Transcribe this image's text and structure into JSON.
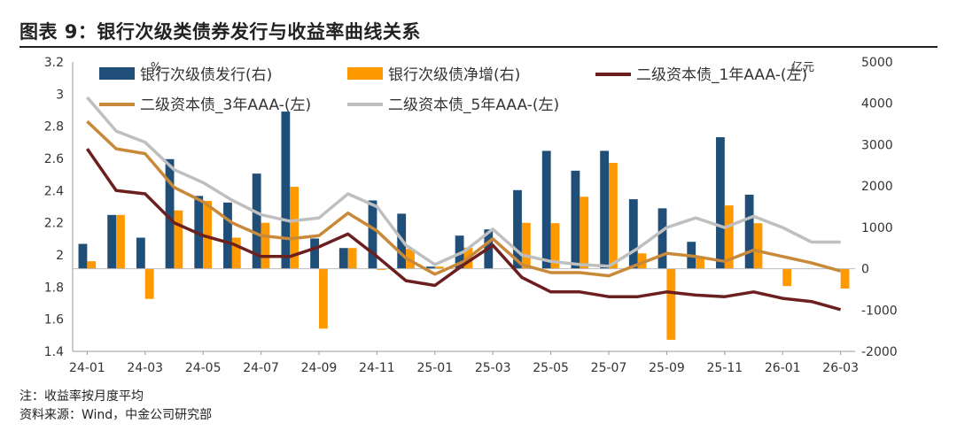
{
  "figure": {
    "title": "图表 9：银行次级类债券发行与收益率曲线关系",
    "note": "注：收益率按月度平均",
    "source": "资料来源：Wind，中金公司研究部"
  },
  "chart_data": {
    "type": "bar",
    "x": [
      "24-01",
      "24-02",
      "24-03",
      "24-04",
      "24-05",
      "24-06",
      "24-07",
      "24-08",
      "24-09",
      "24-10",
      "24-11",
      "24-12",
      "25-01",
      "25-02",
      "25-03",
      "25-04",
      "25-05",
      "25-06",
      "25-07",
      "25-08",
      "25-09",
      "25-10",
      "25-11",
      "25-12",
      "26-01",
      "26-02",
      "26-03"
    ],
    "x_tick_labels": [
      "24-01",
      "24-03",
      "24-05",
      "24-07",
      "24-09",
      "24-11",
      "25-01",
      "25-03",
      "25-05",
      "25-07",
      "25-09",
      "25-11",
      "26-01",
      "26-03"
    ],
    "left_axis": {
      "unit": "%",
      "min": 1.4,
      "max": 3.2,
      "ticks": [
        "1.4",
        "1.6",
        "1.8",
        "2",
        "2.2",
        "2.4",
        "2.6",
        "2.8",
        "3",
        "3.2"
      ]
    },
    "right_axis": {
      "unit": "亿元",
      "min": -2000,
      "max": 5000,
      "ticks": [
        "-2000",
        "-1000",
        "0",
        "1000",
        "2000",
        "3000",
        "4000",
        "5000"
      ]
    },
    "bar_series": [
      {
        "name": "银行次级债发行(右)",
        "color": "#1f4e79",
        "values": [
          600,
          1300,
          750,
          2650,
          1760,
          1600,
          2300,
          3800,
          730,
          500,
          1650,
          1330,
          50,
          800,
          950,
          1900,
          2850,
          2370,
          2850,
          1680,
          1460,
          650,
          3180,
          1790,
          null,
          null,
          null
        ]
      },
      {
        "name": "银行次级债净增(右)",
        "color": "#ff9900",
        "values": [
          180,
          1300,
          -730,
          1410,
          1640,
          750,
          1110,
          1980,
          -1450,
          500,
          -30,
          480,
          50,
          510,
          0,
          1110,
          1100,
          1740,
          2560,
          370,
          -1720,
          280,
          1530,
          1100,
          -420,
          0,
          -480
        ]
      }
    ],
    "line_series": [
      {
        "name": "二级资本债_1年AAA-(左)",
        "color": "#6b1f1f",
        "values": [
          2.66,
          2.4,
          2.38,
          2.2,
          2.12,
          2.07,
          1.99,
          1.99,
          2.05,
          2.13,
          1.99,
          1.84,
          1.81,
          1.94,
          2.06,
          1.86,
          1.77,
          1.77,
          1.74,
          1.74,
          1.77,
          1.75,
          1.74,
          1.77,
          1.73,
          1.71,
          1.66
        ]
      },
      {
        "name": "二级资本债_3年AAA-(左)",
        "color": "#c8893a",
        "values": [
          2.83,
          2.66,
          2.63,
          2.42,
          2.33,
          2.2,
          2.12,
          2.1,
          2.12,
          2.26,
          2.15,
          1.98,
          1.88,
          1.96,
          2.1,
          1.94,
          1.89,
          1.89,
          1.87,
          1.94,
          2.01,
          1.99,
          1.96,
          2.03,
          1.99,
          1.95,
          1.9
        ]
      },
      {
        "name": "二级资本债_5年AAA-(左)",
        "color": "#bfbfbf",
        "values": [
          2.98,
          2.77,
          2.7,
          2.53,
          2.45,
          2.34,
          2.25,
          2.21,
          2.23,
          2.38,
          2.3,
          2.06,
          1.94,
          2.02,
          2.16,
          2.0,
          1.96,
          1.94,
          1.93,
          2.04,
          2.17,
          2.23,
          2.17,
          2.24,
          2.17,
          2.08,
          2.08
        ]
      }
    ],
    "legend_placement": "top",
    "grid": false
  }
}
